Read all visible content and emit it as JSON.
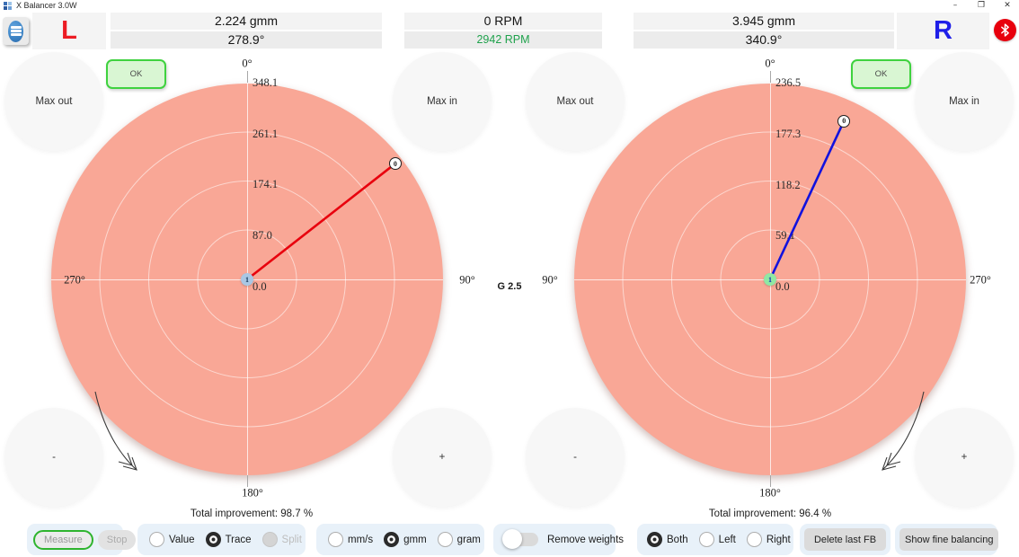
{
  "window": {
    "title": "X Balancer 3.0W",
    "minimize": "–",
    "restore": "❐",
    "close": "✕"
  },
  "header": {
    "menu_icon": "hamburger-menu",
    "left_channel": "L",
    "right_channel": "R",
    "left_amplitude": "2.224 gmm",
    "left_phase": "278.9°",
    "rpm_current": "0 RPM",
    "rpm_reference": "2942 RPM",
    "right_amplitude": "3.945 gmm",
    "right_phase": "340.9°",
    "bluetooth_icon": "bluetooth"
  },
  "standard_label": "G 2.5",
  "chart_data": [
    {
      "type": "polar",
      "side": "left",
      "units": "gmm",
      "max": 348.1,
      "radial_ticks": [
        "0.0",
        "87.0",
        "174.1",
        "261.1",
        "348.1"
      ],
      "angle_labels": {
        "top": "0°",
        "right": "90°",
        "bottom": "180°",
        "left": "270°"
      },
      "orientation": "cw",
      "line_color": "#E8000D",
      "disc_color": "#F9A796",
      "center_marker_color": "#A9C7E4",
      "center_marker_text_color": "#173A5C",
      "trace": [
        {
          "label": "0",
          "value": 334,
          "angle": 52
        },
        {
          "label": "1",
          "value": 0,
          "angle": 0
        }
      ],
      "buttons": {
        "ok": "OK",
        "max_out": "Max out",
        "max_in": "Max in",
        "minus": "-",
        "plus": "+"
      },
      "title_improvement": "Total improvement: 98.7 %"
    },
    {
      "type": "polar",
      "side": "right",
      "units": "gmm",
      "max": 236.5,
      "radial_ticks": [
        "0.0",
        "59.1",
        "118.2",
        "177.3",
        "236.5"
      ],
      "angle_labels": {
        "top": "0°",
        "left": "90°",
        "bottom": "180°",
        "right": "270°"
      },
      "orientation": "ccw",
      "line_color": "#1212DE",
      "disc_color": "#F9A796",
      "center_marker_color": "#8FE8A4",
      "center_marker_text_color": "#1A2FB0",
      "trace": [
        {
          "label": "0",
          "value": 211,
          "angle": 335
        },
        {
          "label": "1",
          "value": 0,
          "angle": 0
        }
      ],
      "buttons": {
        "ok": "OK",
        "max_out": "Max out",
        "max_in": "Max in",
        "minus": "-",
        "plus": "+"
      },
      "title_improvement": "Total improvement: 96.4 %"
    }
  ],
  "footer": {
    "measure_label": "Measure",
    "stop_label": "Stop",
    "display_mode": {
      "options": [
        {
          "label": "Value",
          "state": "unselected"
        },
        {
          "label": "Trace",
          "state": "selected"
        },
        {
          "label": "Split",
          "state": "disabled"
        }
      ]
    },
    "units": {
      "options": [
        {
          "label": "mm/s",
          "state": "unselected"
        },
        {
          "label": "gmm",
          "state": "selected"
        },
        {
          "label": "gram",
          "state": "unselected"
        }
      ]
    },
    "remove_weights": {
      "label": "Remove weights",
      "state": "off"
    },
    "plane": {
      "options": [
        {
          "label": "Both",
          "state": "selected"
        },
        {
          "label": "Left",
          "state": "unselected"
        },
        {
          "label": "Right",
          "state": "unselected"
        }
      ]
    },
    "delete_last_fb_label": "Delete last FB",
    "show_fine_balancing_label": "Show fine balancing"
  }
}
